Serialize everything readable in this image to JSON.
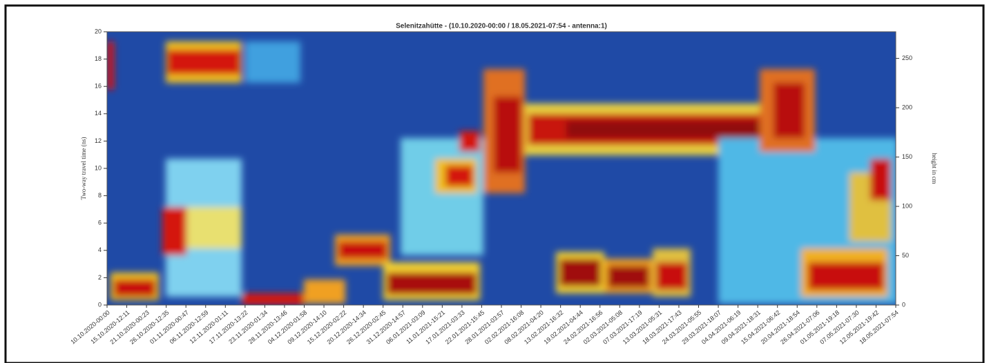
{
  "chart_data": {
    "type": "heatmap",
    "title": "Selenitzahütte - (10.10.2020-00:00 / 18.05.2021-07:54 - antenna:1)",
    "y_label": "Two-way travel time (ns)",
    "y2_label": "height in cm",
    "categories": [
      "10.10.2020-00:00",
      "15.10.2020-12:11",
      "21.10.2020-00:23",
      "26.10.2020-12:35",
      "01.11.2020-00:47",
      "06.11.2020-12:59",
      "12.11.2020-01:11",
      "17.11.2020-13:22",
      "23.11.2020-01:34",
      "28.11.2020-13:46",
      "04.12.2020-01:58",
      "09.12.2020-14:10",
      "15.12.2020-02:22",
      "20.12.2020-14:34",
      "26.12.2020-02:45",
      "31.12.2020-14:57",
      "06.01.2021-03:09",
      "11.01.2021-15:21",
      "17.01.2021-03:33",
      "22.01.2021-15:45",
      "28.01.2021-03:57",
      "02.02.2021-16:08",
      "08.02.2021-04:20",
      "13.02.2021-16:32",
      "19.02.2021-04:44",
      "24.02.2021-16:56",
      "02.03.2021-05:08",
      "07.03.2021-17:19",
      "13.03.2021-05:31",
      "18.03.2021-17:43",
      "24.03.2021-05:55",
      "29.03.2021-18:07",
      "04.04.2021-06:19",
      "09.04.2021-18:31",
      "15.04.2021-06:42",
      "20.04.2021-18:54",
      "26.04.2021-07:06",
      "01.05.2021-19:18",
      "07.05.2021-07:30",
      "12.05.2021-19:42",
      "18.05.2021-07:54"
    ],
    "ylim": [
      0,
      20
    ],
    "yticks": [
      0,
      2,
      4,
      6,
      8,
      10,
      12,
      14,
      16,
      18,
      20
    ],
    "y2lim": [
      0,
      277
    ],
    "y2ticks": [
      0,
      50,
      100,
      150,
      200,
      250
    ]
  }
}
